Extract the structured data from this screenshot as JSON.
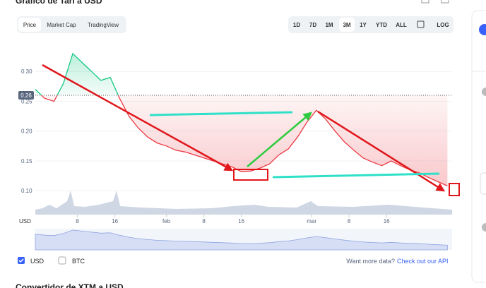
{
  "title": "Gráfico de Tari a USD",
  "tabs": [
    "Price",
    "Market Cap",
    "TradingView"
  ],
  "ranges": [
    "1D",
    "7D",
    "1M",
    "3M",
    "1Y",
    "YTD",
    "ALL"
  ],
  "log_button": "LOG",
  "currency_axis": "USD",
  "legend": [
    "USD",
    "BTC"
  ],
  "more_data": "Want more data?",
  "api_link": "Check out our API",
  "converter_title": "Convertidor de XTM a USD",
  "chart_data": {
    "type": "line",
    "current_price": 0.26,
    "x": [
      0,
      2,
      4,
      6,
      8,
      10,
      12,
      14,
      16,
      18,
      20,
      22,
      24,
      26,
      28,
      30,
      32,
      34,
      36,
      38,
      40,
      42,
      44,
      46,
      48,
      50,
      52,
      54,
      56,
      58,
      60,
      62,
      64,
      66,
      68,
      70,
      72,
      74,
      76,
      78,
      80,
      82,
      84,
      86,
      88
    ],
    "values": [
      0.27,
      0.255,
      0.25,
      0.28,
      0.33,
      0.315,
      0.3,
      0.285,
      0.29,
      0.255,
      0.225,
      0.205,
      0.19,
      0.18,
      0.175,
      0.168,
      0.165,
      0.16,
      0.155,
      0.15,
      0.145,
      0.14,
      0.132,
      0.133,
      0.138,
      0.145,
      0.16,
      0.17,
      0.19,
      0.215,
      0.235,
      0.22,
      0.2,
      0.182,
      0.168,
      0.155,
      0.148,
      0.142,
      0.15,
      0.142,
      0.135,
      0.13,
      0.122,
      0.115,
      0.108
    ],
    "xlim": [
      0,
      89
    ],
    "xticks": [
      {
        "value": 9,
        "label": "8"
      },
      {
        "value": 17,
        "label": "16"
      },
      {
        "value": 28,
        "label": "feb"
      },
      {
        "value": 36,
        "label": "8"
      },
      {
        "value": 44,
        "label": "16"
      },
      {
        "value": 59,
        "label": "mar"
      },
      {
        "value": 67,
        "label": "8"
      },
      {
        "value": 75,
        "label": "16"
      }
    ],
    "ylim": [
      0.06,
      0.35
    ],
    "yticks": [
      {
        "value": 0.1,
        "label": "0.10"
      },
      0.15,
      {
        "value": 0.2,
        "label": "0.20"
      },
      0.25,
      {
        "value": 0.3,
        "label": "0.30"
      }
    ],
    "up_color": "#16c784",
    "down_color": "#ea3943",
    "grid": true
  }
}
